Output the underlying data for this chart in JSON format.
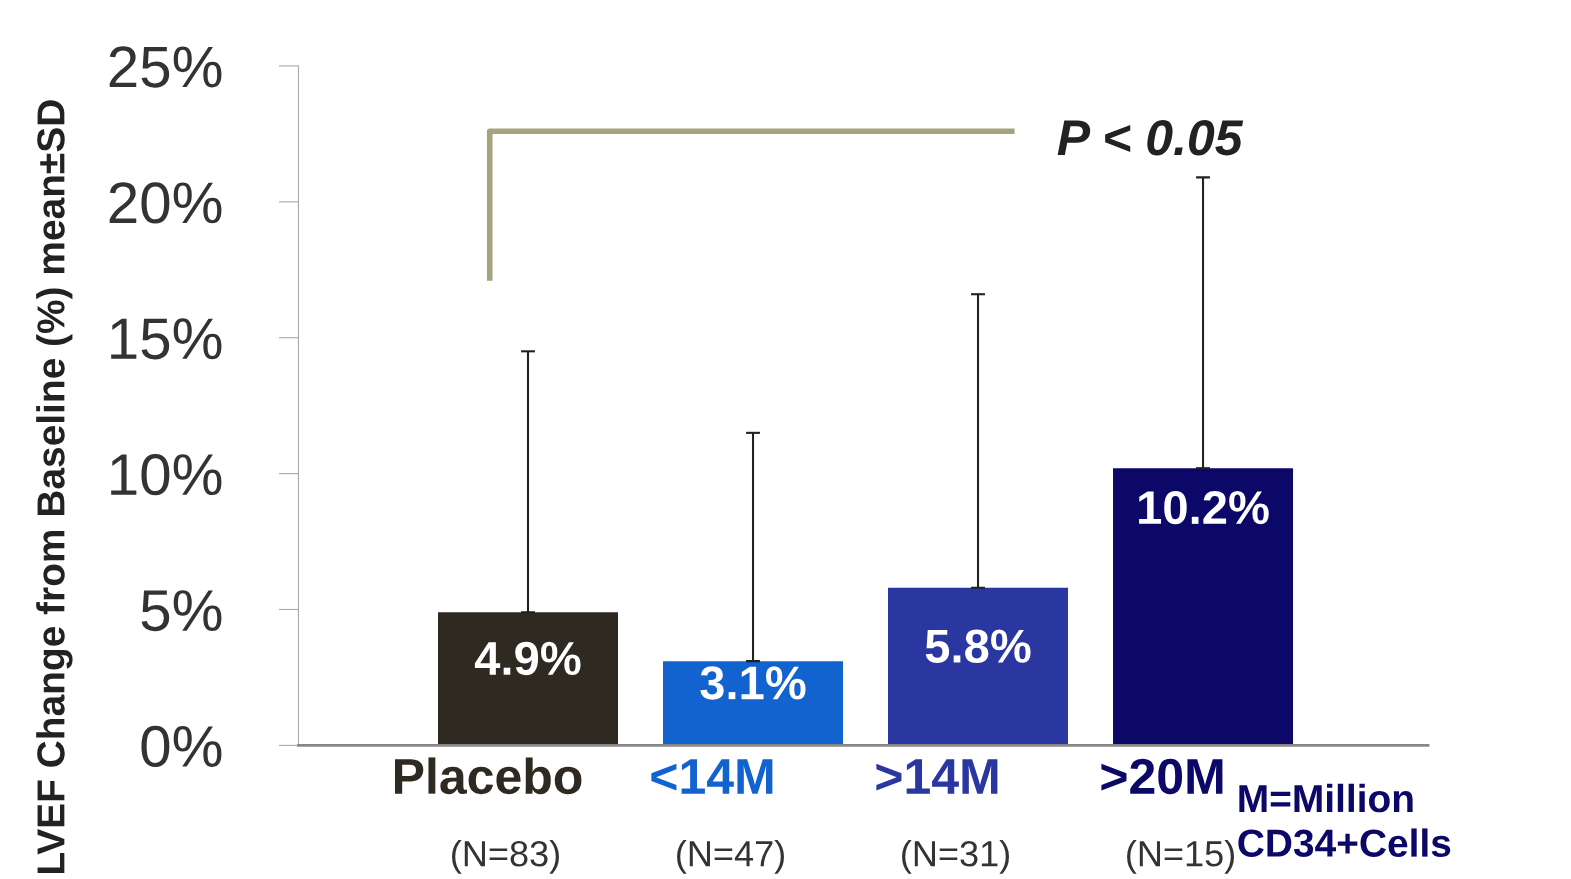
{
  "chart_data": {
    "type": "bar",
    "ylabel": "LVEF Change from Baseline (%) mean±SD",
    "categories": [
      "Placebo\n(N=83)",
      "<14M\n(N=47)",
      ">14M\n(N=31)",
      ">20M\n(N=15)"
    ],
    "values": [
      4.9,
      3.1,
      5.8,
      10.2
    ],
    "colors": [
      "#2e2a22",
      "#1262cf",
      "#2b37a0",
      "#0c0868"
    ],
    "errors": [
      [
        4.9,
        14.5
      ],
      [
        3.1,
        11.5
      ],
      [
        5.8,
        16.6
      ],
      [
        10.2,
        20.9
      ]
    ],
    "value_labels": [
      "4.9%",
      "3.1%",
      "5.8%",
      "10.2%"
    ],
    "ylim": [
      0,
      25
    ],
    "yticks": [
      {
        "value": 0,
        "label": "0%"
      },
      {
        "value": 5,
        "label": "5%"
      },
      {
        "value": 10,
        "label": "10%"
      },
      {
        "value": 15,
        "label": "15%"
      },
      {
        "value": 20,
        "label": "20%"
      },
      {
        "value": 25,
        "label": "25%"
      }
    ],
    "grid": false,
    "annotations": [
      "P < 0.05",
      "M=Million\nCD34+Cells"
    ]
  }
}
